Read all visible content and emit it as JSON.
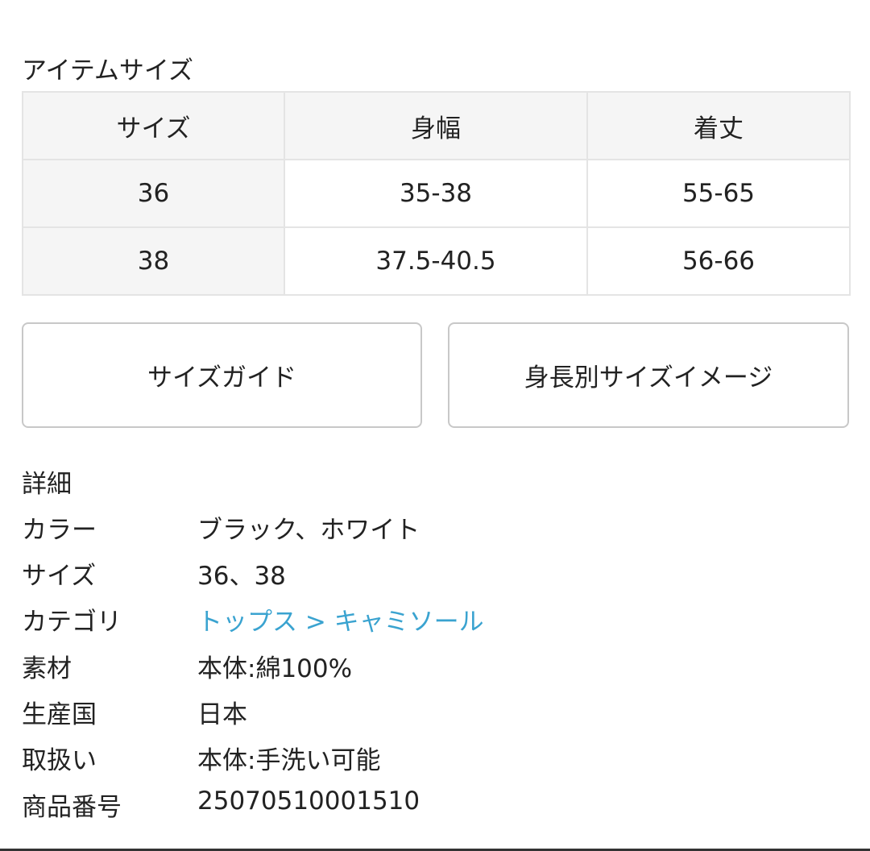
{
  "item_size": {
    "title": "アイテムサイズ",
    "headers": [
      "サイズ",
      "身幅",
      "着丈"
    ],
    "rows": [
      [
        "36",
        "35-38",
        "55-65"
      ],
      [
        "38",
        "37.5-40.5",
        "56-66"
      ]
    ]
  },
  "buttons": {
    "size_guide": "サイズガイド",
    "height_size_image": "身長別サイズイメージ"
  },
  "details": {
    "title": "詳細",
    "rows": [
      {
        "label": "カラー",
        "value": "ブラック、ホワイト"
      },
      {
        "label": "サイズ",
        "value": "36、38"
      },
      {
        "label": "カテゴリ",
        "value": "トップス > キャミソール"
      },
      {
        "label": "素材",
        "value": "本体:綿100%"
      },
      {
        "label": "生産国",
        "value": "日本"
      },
      {
        "label": "取扱い",
        "value": "本体:手洗い可能"
      },
      {
        "label": "商品番号",
        "value": "25070510001510"
      }
    ]
  },
  "colors": {
    "link": "#3aa3d0",
    "header_bg": "#f5f5f5"
  }
}
